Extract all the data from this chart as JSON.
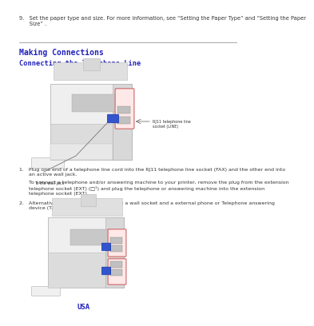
{
  "bg_color": "#ffffff",
  "heading_color": "#2222bb",
  "body_text_color": "#333333",
  "step9_text": "9.   Set the paper type and size. For more information, see “Setting the Paper Type” and “Setting the Paper\n      Size” .",
  "section_title": "Making Connections",
  "subsection_title": "Connecting the Telephone Line",
  "body1_text": "1.   Plug one end of a telephone line cord into the RJ11 telephone line socket (FAX) and the other end into\n      an active wall jack.",
  "body2_text": "      To connect a telephone and/or answering machine to your printer, remove the plug from the extension\n      telephone socket (EXT) (□¹) and plug the telephone or answering machine into the extension\n      telephone socket (EXT).",
  "body3_text": "2.   Alternative setup of Fax connected to a wall socket and a external phone or Telephone answering\n      device (TAD).",
  "callout1": "RJ11 telephone line\nsocket (LINE)",
  "callout2": "To the wall jack",
  "usa_label": "USA",
  "step9_fs": 4.8,
  "heading_fs": 7.0,
  "subheading_fs": 6.2,
  "body_fs": 4.5,
  "callout_fs": 3.5,
  "usa_fs": 6.5
}
